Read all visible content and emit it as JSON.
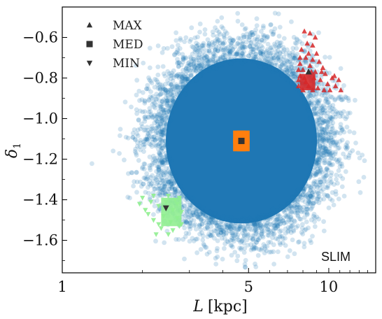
{
  "chart_data": {
    "type": "scatter",
    "xlabel": "L [kpc]",
    "xlabel_var": "L",
    "xlabel_unit": "[kpc]",
    "ylabel": "δ1",
    "ylabel_var": "δ",
    "ylabel_sub": "1",
    "xscale": "log",
    "xlim": [
      1.0,
      15.0
    ],
    "ylim": [
      -1.76,
      -0.45
    ],
    "xticks": [
      {
        "value": 1,
        "label": "1"
      },
      {
        "value": 5,
        "label": "5"
      },
      {
        "value": 10,
        "label": "10"
      }
    ],
    "yticks": [
      {
        "value": -0.6,
        "label": "−0.6"
      },
      {
        "value": -0.8,
        "label": "−0.8"
      },
      {
        "value": -1.0,
        "label": "−1.0"
      },
      {
        "value": -1.2,
        "label": "−1.2"
      },
      {
        "value": -1.4,
        "label": "−1.4"
      },
      {
        "value": -1.6,
        "label": "−1.6"
      }
    ],
    "grid": false,
    "legend_position": "top-left",
    "annotation": "SLIM",
    "cloud": {
      "center": [
        4.7,
        -1.11
      ],
      "color": "#1f77b4"
    },
    "series": [
      {
        "name": "MAX",
        "marker": "triangle-up",
        "color": "#333333",
        "points": [
          [
            8.4,
            -0.77
          ]
        ],
        "region": {
          "color": "#d62728",
          "points": [
            [
              8.1,
              -0.57
            ],
            [
              8.5,
              -0.58
            ],
            [
              8.9,
              -0.6
            ],
            [
              8.3,
              -0.63
            ],
            [
              8.7,
              -0.64
            ],
            [
              7.9,
              -0.66
            ],
            [
              8.4,
              -0.68
            ],
            [
              9.0,
              -0.68
            ],
            [
              8.2,
              -0.7
            ],
            [
              8.7,
              -0.71
            ],
            [
              9.2,
              -0.72
            ],
            [
              7.8,
              -0.73
            ],
            [
              8.5,
              -0.74
            ],
            [
              9.5,
              -0.75
            ],
            [
              8.0,
              -0.76
            ],
            [
              8.9,
              -0.77
            ],
            [
              9.7,
              -0.78
            ],
            [
              10.3,
              -0.8
            ],
            [
              10.9,
              -0.81
            ],
            [
              9.3,
              -0.81
            ],
            [
              8.2,
              -0.82
            ],
            [
              8.8,
              -0.8
            ],
            [
              7.8,
              -0.79
            ],
            [
              9.9,
              -0.83
            ],
            [
              10.6,
              -0.84
            ],
            [
              11.1,
              -0.86
            ],
            [
              9.1,
              -0.85
            ],
            [
              8.4,
              -0.84
            ],
            [
              7.7,
              -0.84
            ],
            [
              9.6,
              -0.86
            ],
            [
              10.1,
              -0.86
            ],
            [
              8.7,
              -0.86
            ],
            [
              8.0,
              -0.86
            ],
            [
              7.7,
              -0.81
            ],
            [
              7.7,
              -0.76
            ],
            [
              7.8,
              -0.7
            ],
            [
              8.1,
              -0.8
            ],
            [
              9.4,
              -0.77
            ],
            [
              10.5,
              -0.79
            ],
            [
              8.6,
              -0.77
            ]
          ]
        }
      },
      {
        "name": "MED",
        "marker": "square",
        "color": "#333333",
        "points": [
          [
            4.7,
            -1.11
          ]
        ],
        "region": {
          "color": "#ff7f0e",
          "points": [
            [
              4.62,
              -1.09
            ],
            [
              4.78,
              -1.09
            ],
            [
              4.62,
              -1.13
            ],
            [
              4.78,
              -1.13
            ],
            [
              4.7,
              -1.11
            ],
            [
              4.66,
              -1.1
            ],
            [
              4.74,
              -1.12
            ]
          ]
        }
      },
      {
        "name": "MIN",
        "marker": "triangle-down",
        "color": "#333333",
        "points": [
          [
            2.45,
            -1.44
          ]
        ],
        "region": {
          "color": "#90ee90",
          "points": [
            [
              2.0,
              -1.39
            ],
            [
              2.2,
              -1.38
            ],
            [
              2.5,
              -1.38
            ],
            [
              2.75,
              -1.39
            ],
            [
              2.15,
              -1.41
            ],
            [
              2.45,
              -1.41
            ],
            [
              2.7,
              -1.42
            ],
            [
              1.95,
              -1.42
            ],
            [
              2.3,
              -1.43
            ],
            [
              2.6,
              -1.45
            ],
            [
              2.8,
              -1.46
            ],
            [
              2.1,
              -1.47
            ],
            [
              2.4,
              -1.48
            ],
            [
              2.7,
              -1.49
            ],
            [
              2.2,
              -1.5
            ],
            [
              2.55,
              -1.51
            ],
            [
              2.75,
              -1.53
            ],
            [
              2.35,
              -1.54
            ],
            [
              2.6,
              -1.55
            ],
            [
              2.25,
              -1.57
            ],
            [
              2.5,
              -1.57
            ],
            [
              2.8,
              -1.52
            ],
            [
              2.05,
              -1.45
            ],
            [
              2.3,
              -1.52
            ],
            [
              2.65,
              -1.4
            ]
          ]
        }
      }
    ]
  }
}
